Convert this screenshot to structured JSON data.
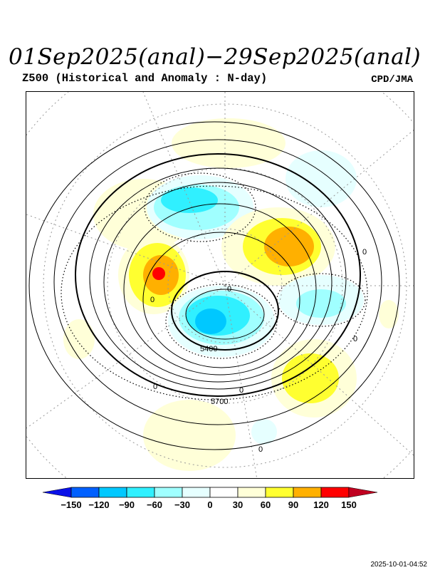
{
  "header": {
    "title": "01Sep2025(anal)−29Sep2025(anal)",
    "subtitle": "Z500 (Historical and Anomaly : N-day)",
    "credit": "CPD/JMA"
  },
  "map": {
    "contour_labels": [
      "5400",
      "5700",
      "0",
      "0",
      "0",
      "0",
      "0",
      "0",
      "0"
    ]
  },
  "colorbar": {
    "ticks": [
      "−150",
      "−120",
      "−90",
      "−60",
      "−30",
      "0",
      "30",
      "60",
      "90",
      "120",
      "150"
    ],
    "colors": [
      "#0a10e8",
      "#0060ff",
      "#00c8ff",
      "#30f0ff",
      "#a0ffff",
      "#e6ffff",
      "#ffffff",
      "#ffffd8",
      "#ffff30",
      "#ffb000",
      "#ff0000",
      "#c00020"
    ]
  },
  "footer": {
    "timestamp": "2025-10-01-04:52"
  }
}
